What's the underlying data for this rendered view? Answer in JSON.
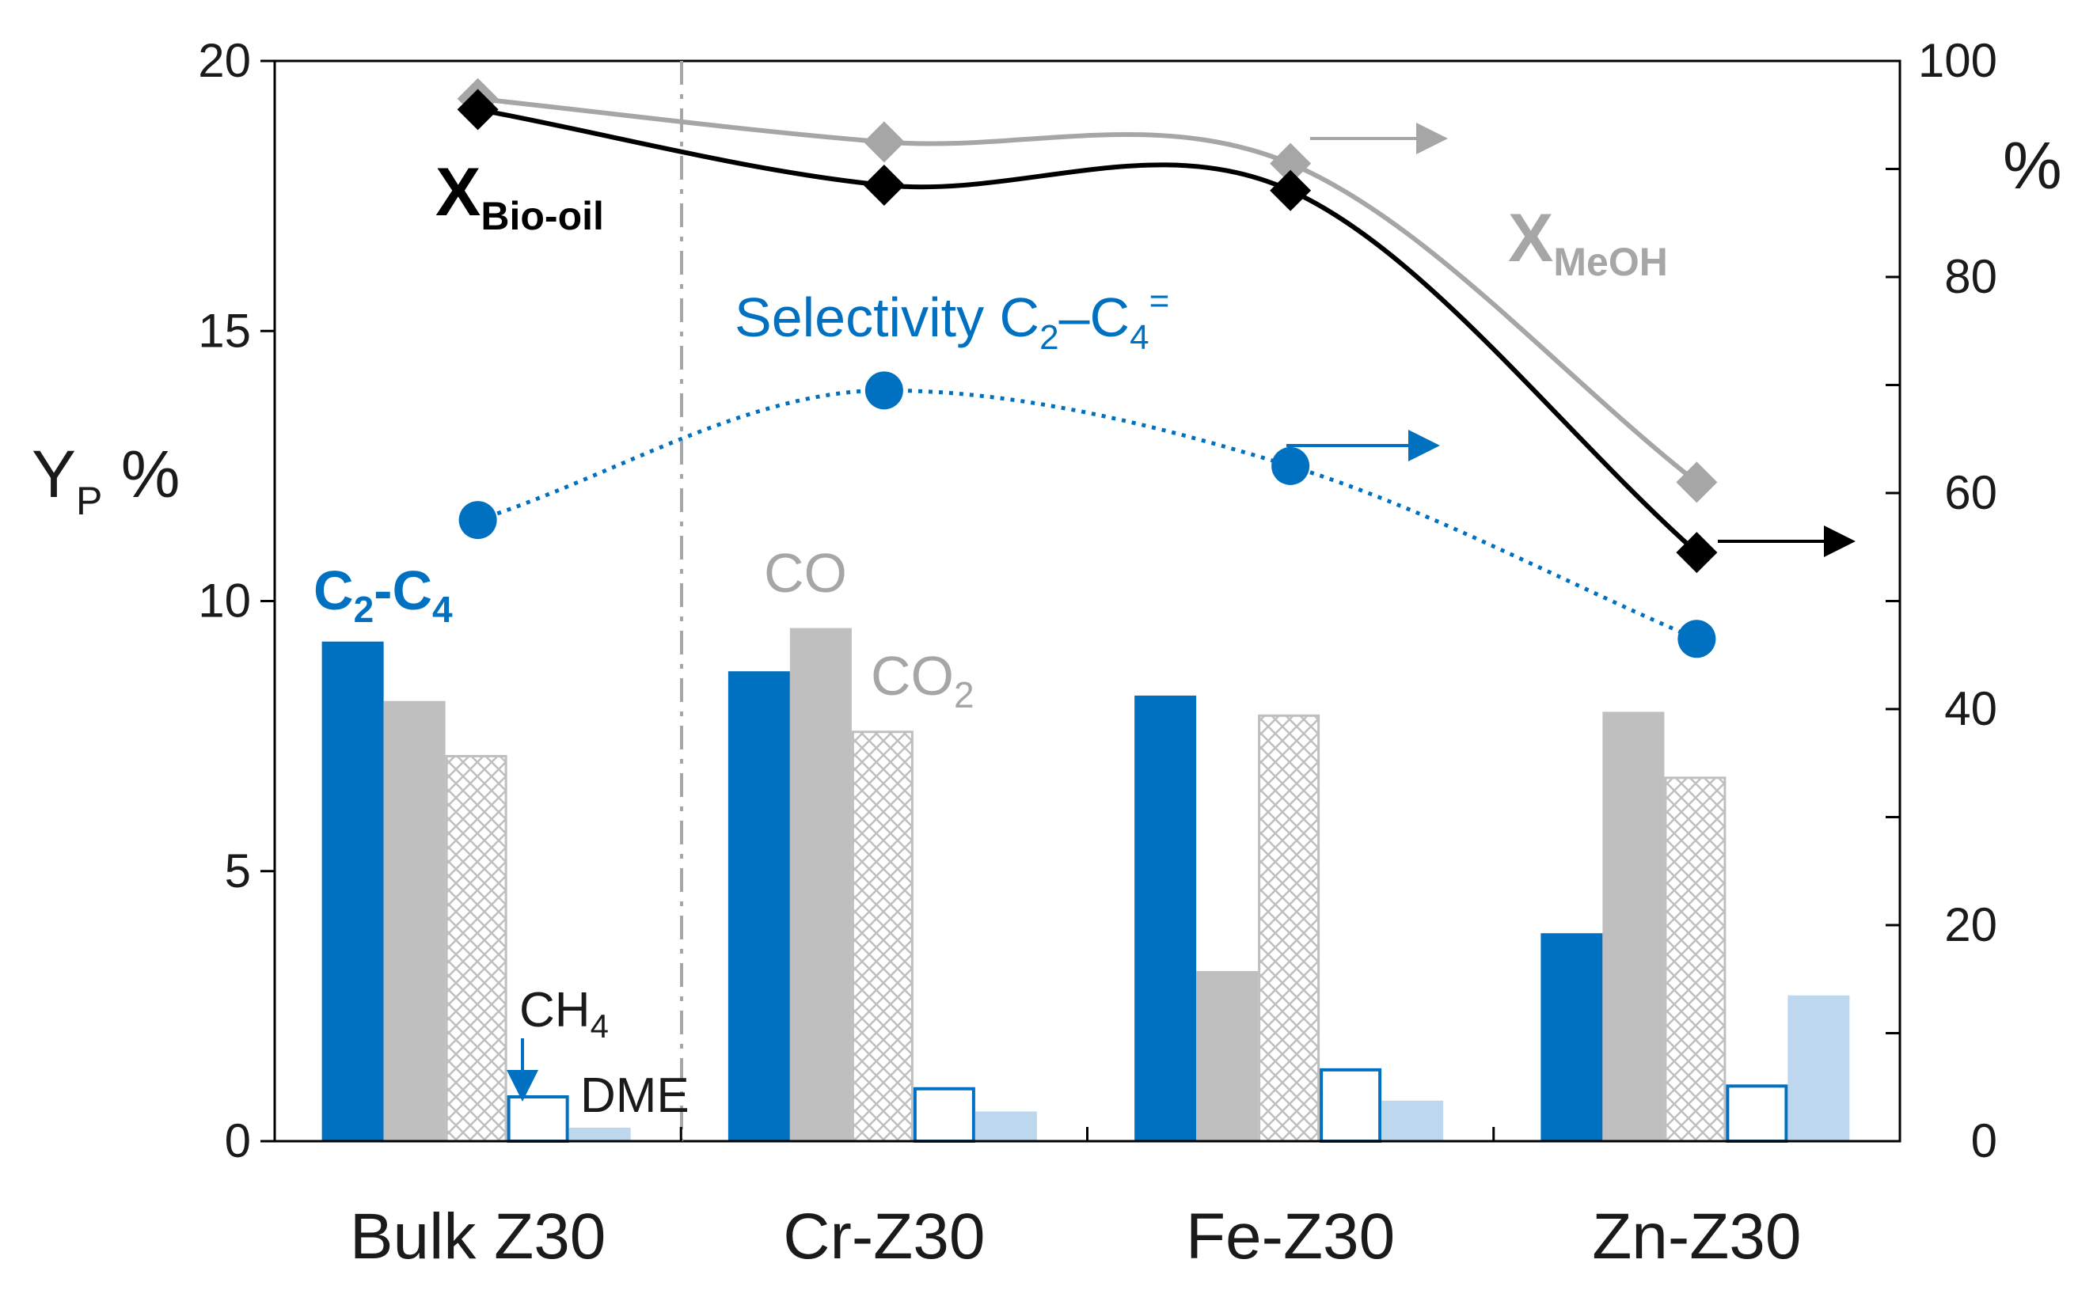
{
  "chart_data": {
    "type": "bar",
    "categories": [
      "Bulk Z30",
      "Cr-Z30",
      "Fe-Z30",
      "Zn-Z30"
    ],
    "left_axis": {
      "label_main": "Y",
      "label_sub": "P",
      "label_unit": " %",
      "ylim": [
        0,
        20
      ],
      "ticks": [
        "0",
        "5",
        "10",
        "15",
        "20"
      ]
    },
    "right_axis": {
      "label": "%",
      "ylim": [
        0,
        100
      ],
      "ticks": [
        "0",
        "20",
        "40",
        "60",
        "80",
        "100"
      ]
    },
    "bar_series": [
      {
        "name": "C2-C4",
        "style": "solid",
        "color": "#0070C0",
        "values": [
          9.25,
          8.7,
          8.25,
          3.85
        ]
      },
      {
        "name": "CO",
        "style": "solid",
        "color": "#BFBFBF",
        "values": [
          8.15,
          9.5,
          3.15,
          7.95
        ]
      },
      {
        "name": "CO2",
        "style": "crosshatch",
        "color": "#BFBFBF",
        "values": [
          7.15,
          7.6,
          7.9,
          6.75
        ]
      },
      {
        "name": "CH4",
        "style": "outline",
        "color": "#0070C0",
        "values": [
          0.85,
          1.0,
          1.35,
          1.05
        ]
      },
      {
        "name": "DME",
        "style": "solid",
        "color": "#BDD7EE",
        "values": [
          0.25,
          0.55,
          0.75,
          2.7
        ]
      }
    ],
    "line_series": [
      {
        "name": "X_Bio-oil",
        "axis": "right",
        "marker": "diamond",
        "color": "#000000",
        "values": [
          95.5,
          88.5,
          88.0,
          54.5
        ]
      },
      {
        "name": "X_MeOH",
        "axis": "right",
        "marker": "diamond",
        "color": "#A6A6A6",
        "values": [
          96.5,
          92.5,
          90.5,
          61.0
        ]
      },
      {
        "name": "Selectivity C2-C4=",
        "axis": "right",
        "marker": "circle",
        "line": "dotted",
        "color": "#0070C0",
        "values": [
          57.5,
          69.5,
          62.5,
          46.5
        ]
      }
    ],
    "separator_after_category": "Bulk Z30",
    "grid": false
  },
  "annotations": {
    "xbio": {
      "main": "X",
      "sub": "Bio-oil"
    },
    "xmeoh": {
      "main": "X",
      "sub": "MeOH"
    },
    "selectivity": {
      "main": "Selectivity C",
      "sub1": "2",
      "dash": "–C",
      "sub2": "4",
      "sup": "="
    },
    "c2c4": {
      "main": "C",
      "sub1": "2",
      "mid": "-C",
      "sub2": "4"
    },
    "co": "CO",
    "co2": {
      "main": "CO",
      "sub": "2"
    },
    "ch4": {
      "main": "CH",
      "sub": "4"
    },
    "dme": "DME"
  }
}
